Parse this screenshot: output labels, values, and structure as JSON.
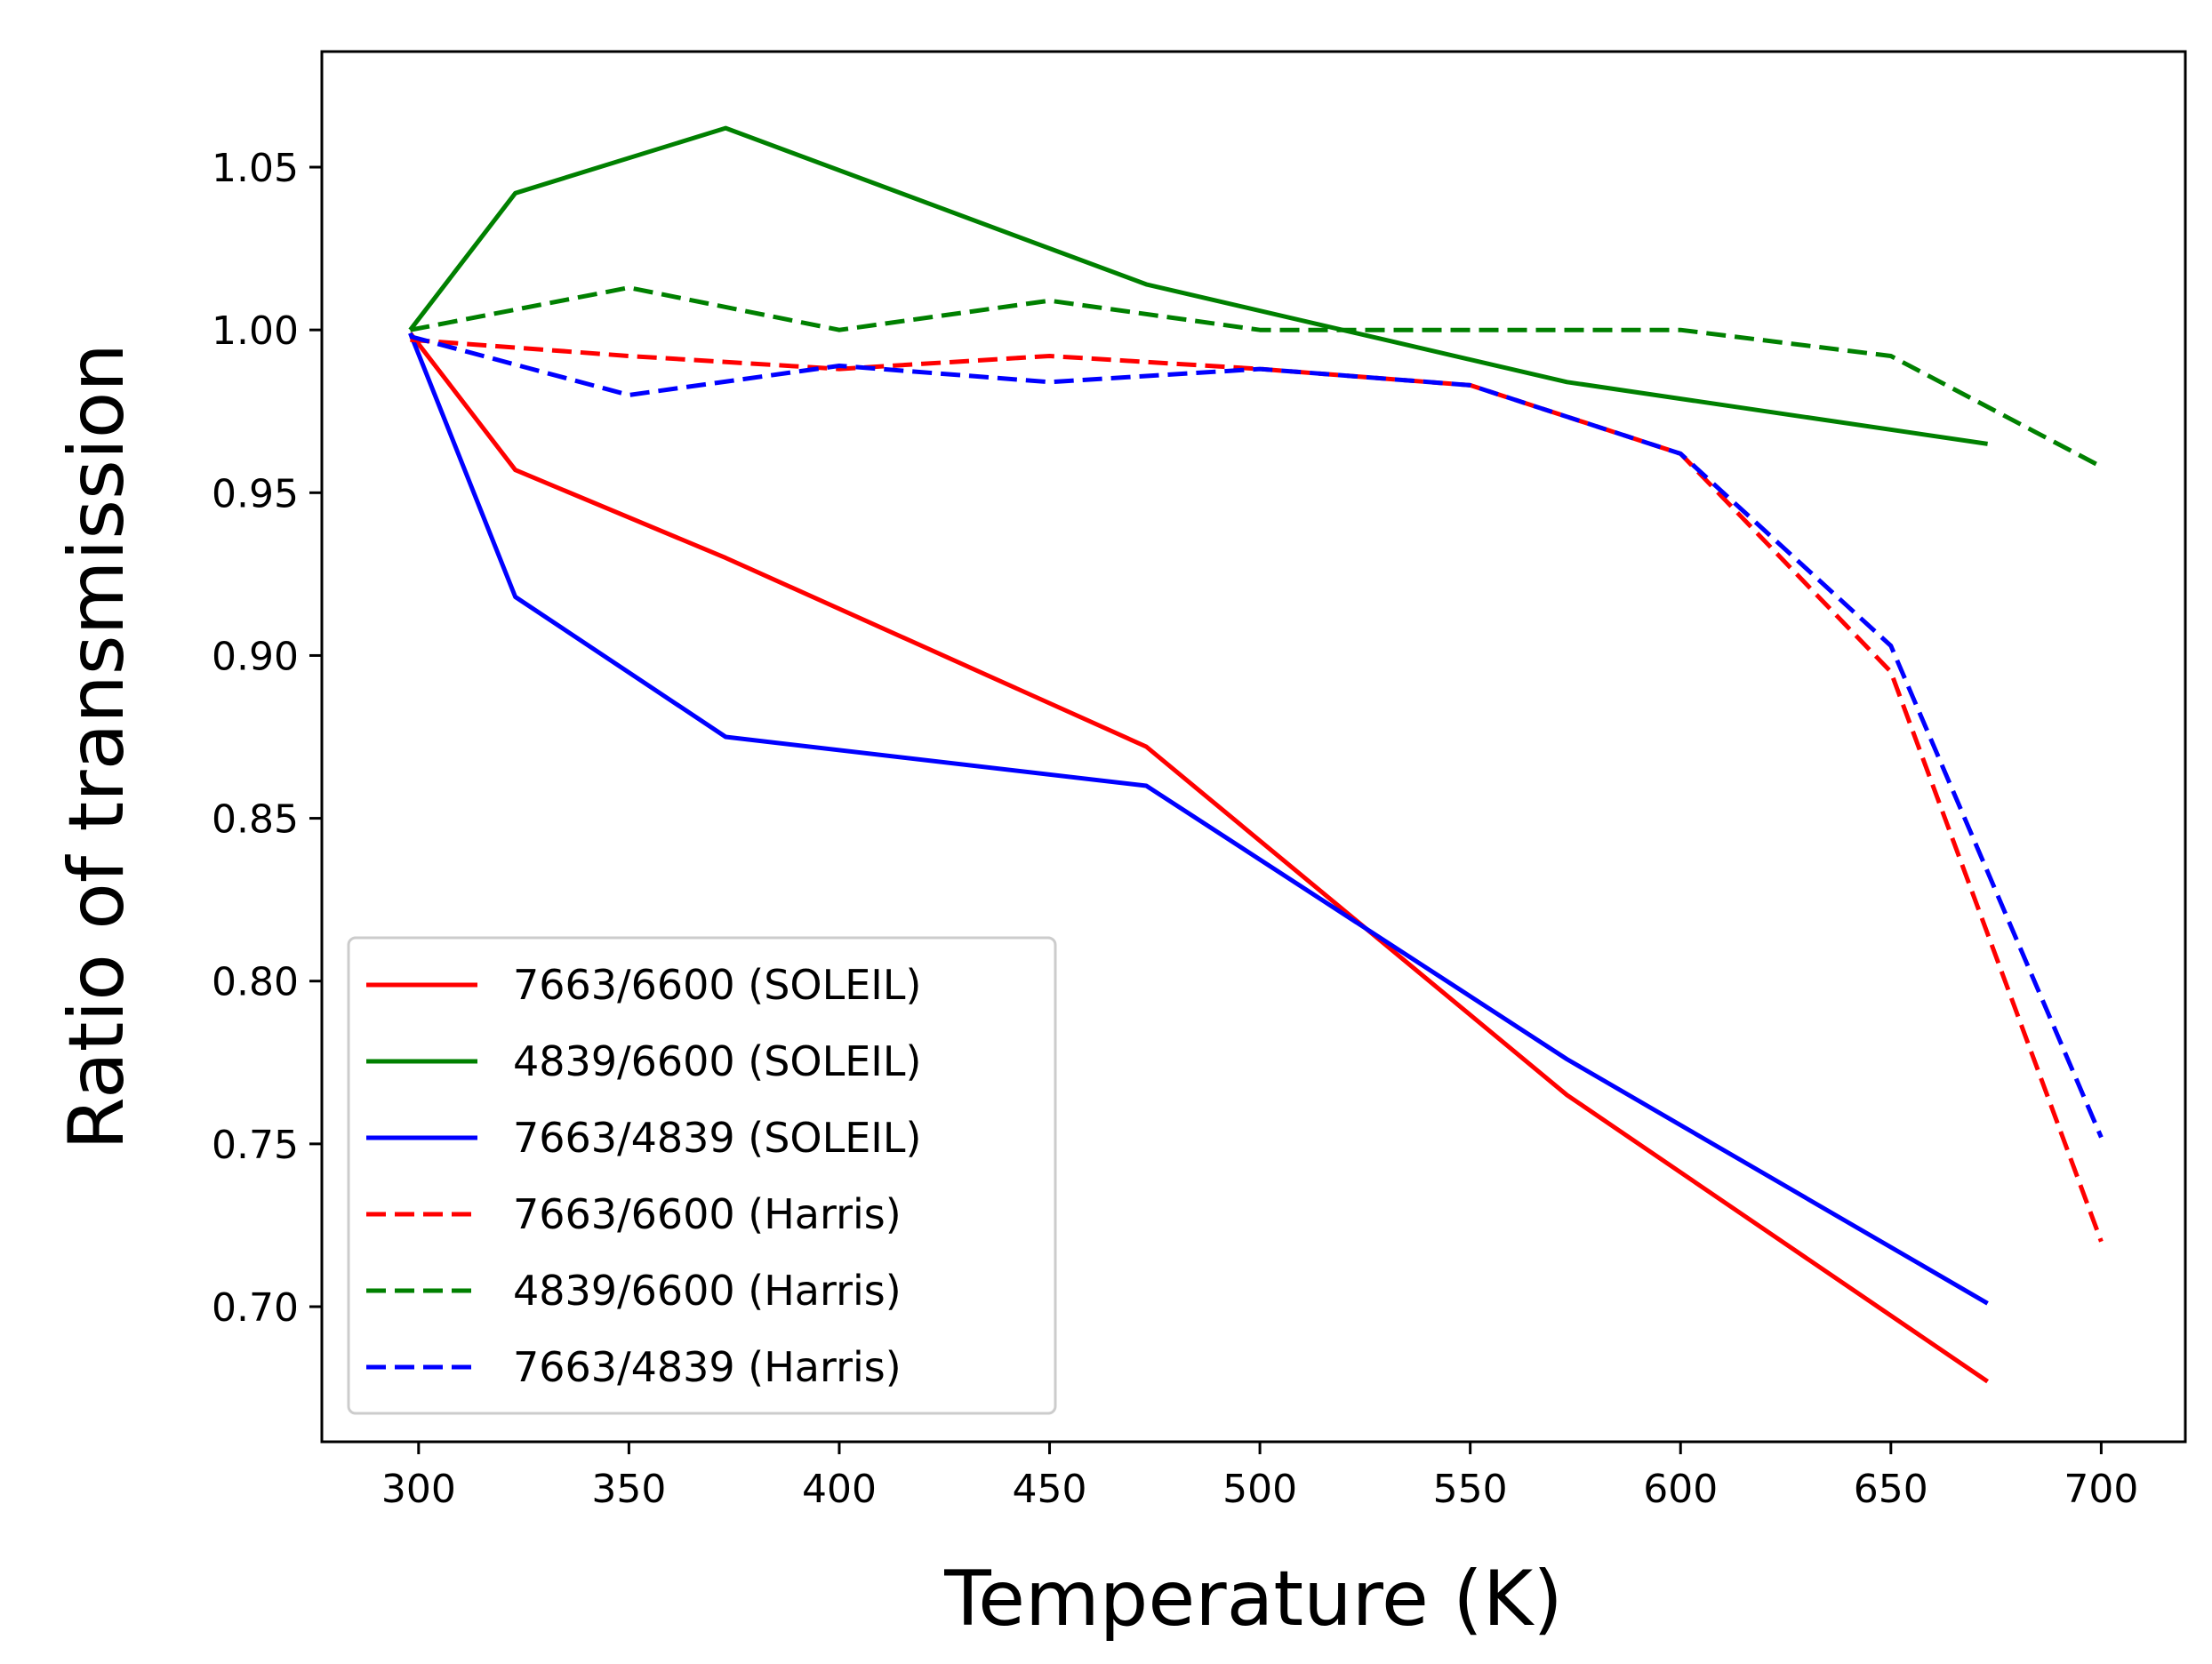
{
  "chart_data": {
    "type": "line",
    "title": "",
    "xlabel": "Temperature (K)",
    "ylabel": "Ratio of transmission",
    "xlim": [
      277,
      720
    ],
    "ylim": [
      0.6585,
      1.0855
    ],
    "xticks": [
      300,
      350,
      400,
      450,
      500,
      550,
      600,
      650,
      700
    ],
    "yticks": [
      0.7,
      0.75,
      0.8,
      0.85,
      0.9,
      0.95,
      1.0,
      1.05
    ],
    "ytick_labels": [
      "0.70",
      "0.75",
      "0.80",
      "0.85",
      "0.90",
      "0.95",
      "1.00",
      "1.05"
    ],
    "grid": false,
    "legend_position": "lower-left",
    "series": [
      {
        "name": "7663/6600 (SOLEIL)",
        "color": "#ff0000",
        "style": "solid",
        "x": [
          298,
          323,
          373,
          473,
          573,
          673
        ],
        "y": [
          0.999,
          0.957,
          0.93,
          0.872,
          0.765,
          0.677
        ]
      },
      {
        "name": "4839/6600 (SOLEIL)",
        "color": "#008000",
        "style": "solid",
        "x": [
          298,
          323,
          373,
          473,
          573,
          673
        ],
        "y": [
          1.0,
          1.042,
          1.062,
          1.014,
          0.984,
          0.965
        ]
      },
      {
        "name": "7663/4839 (SOLEIL)",
        "color": "#0000ff",
        "style": "solid",
        "x": [
          298,
          323,
          373,
          473,
          573,
          673
        ],
        "y": [
          0.999,
          0.918,
          0.875,
          0.86,
          0.776,
          0.701
        ]
      },
      {
        "name": "7663/6600 (Harris)",
        "color": "#ff0000",
        "style": "dashed",
        "x": [
          298,
          350,
          400,
          450,
          500,
          550,
          600,
          650,
          700
        ],
        "y": [
          0.997,
          0.992,
          0.988,
          0.992,
          0.988,
          0.983,
          0.962,
          0.895,
          0.72
        ]
      },
      {
        "name": "4839/6600 (Harris)",
        "color": "#008000",
        "style": "dashed",
        "x": [
          298,
          350,
          400,
          450,
          500,
          550,
          600,
          650,
          700
        ],
        "y": [
          1.0,
          1.013,
          1.0,
          1.009,
          1.0,
          1.0,
          1.0,
          0.992,
          0.958
        ]
      },
      {
        "name": "7663/4839 (Harris)",
        "color": "#0000ff",
        "style": "dashed",
        "x": [
          298,
          350,
          400,
          450,
          500,
          550,
          600,
          650,
          700
        ],
        "y": [
          0.998,
          0.98,
          0.989,
          0.984,
          0.988,
          0.983,
          0.962,
          0.903,
          0.752
        ]
      }
    ]
  }
}
